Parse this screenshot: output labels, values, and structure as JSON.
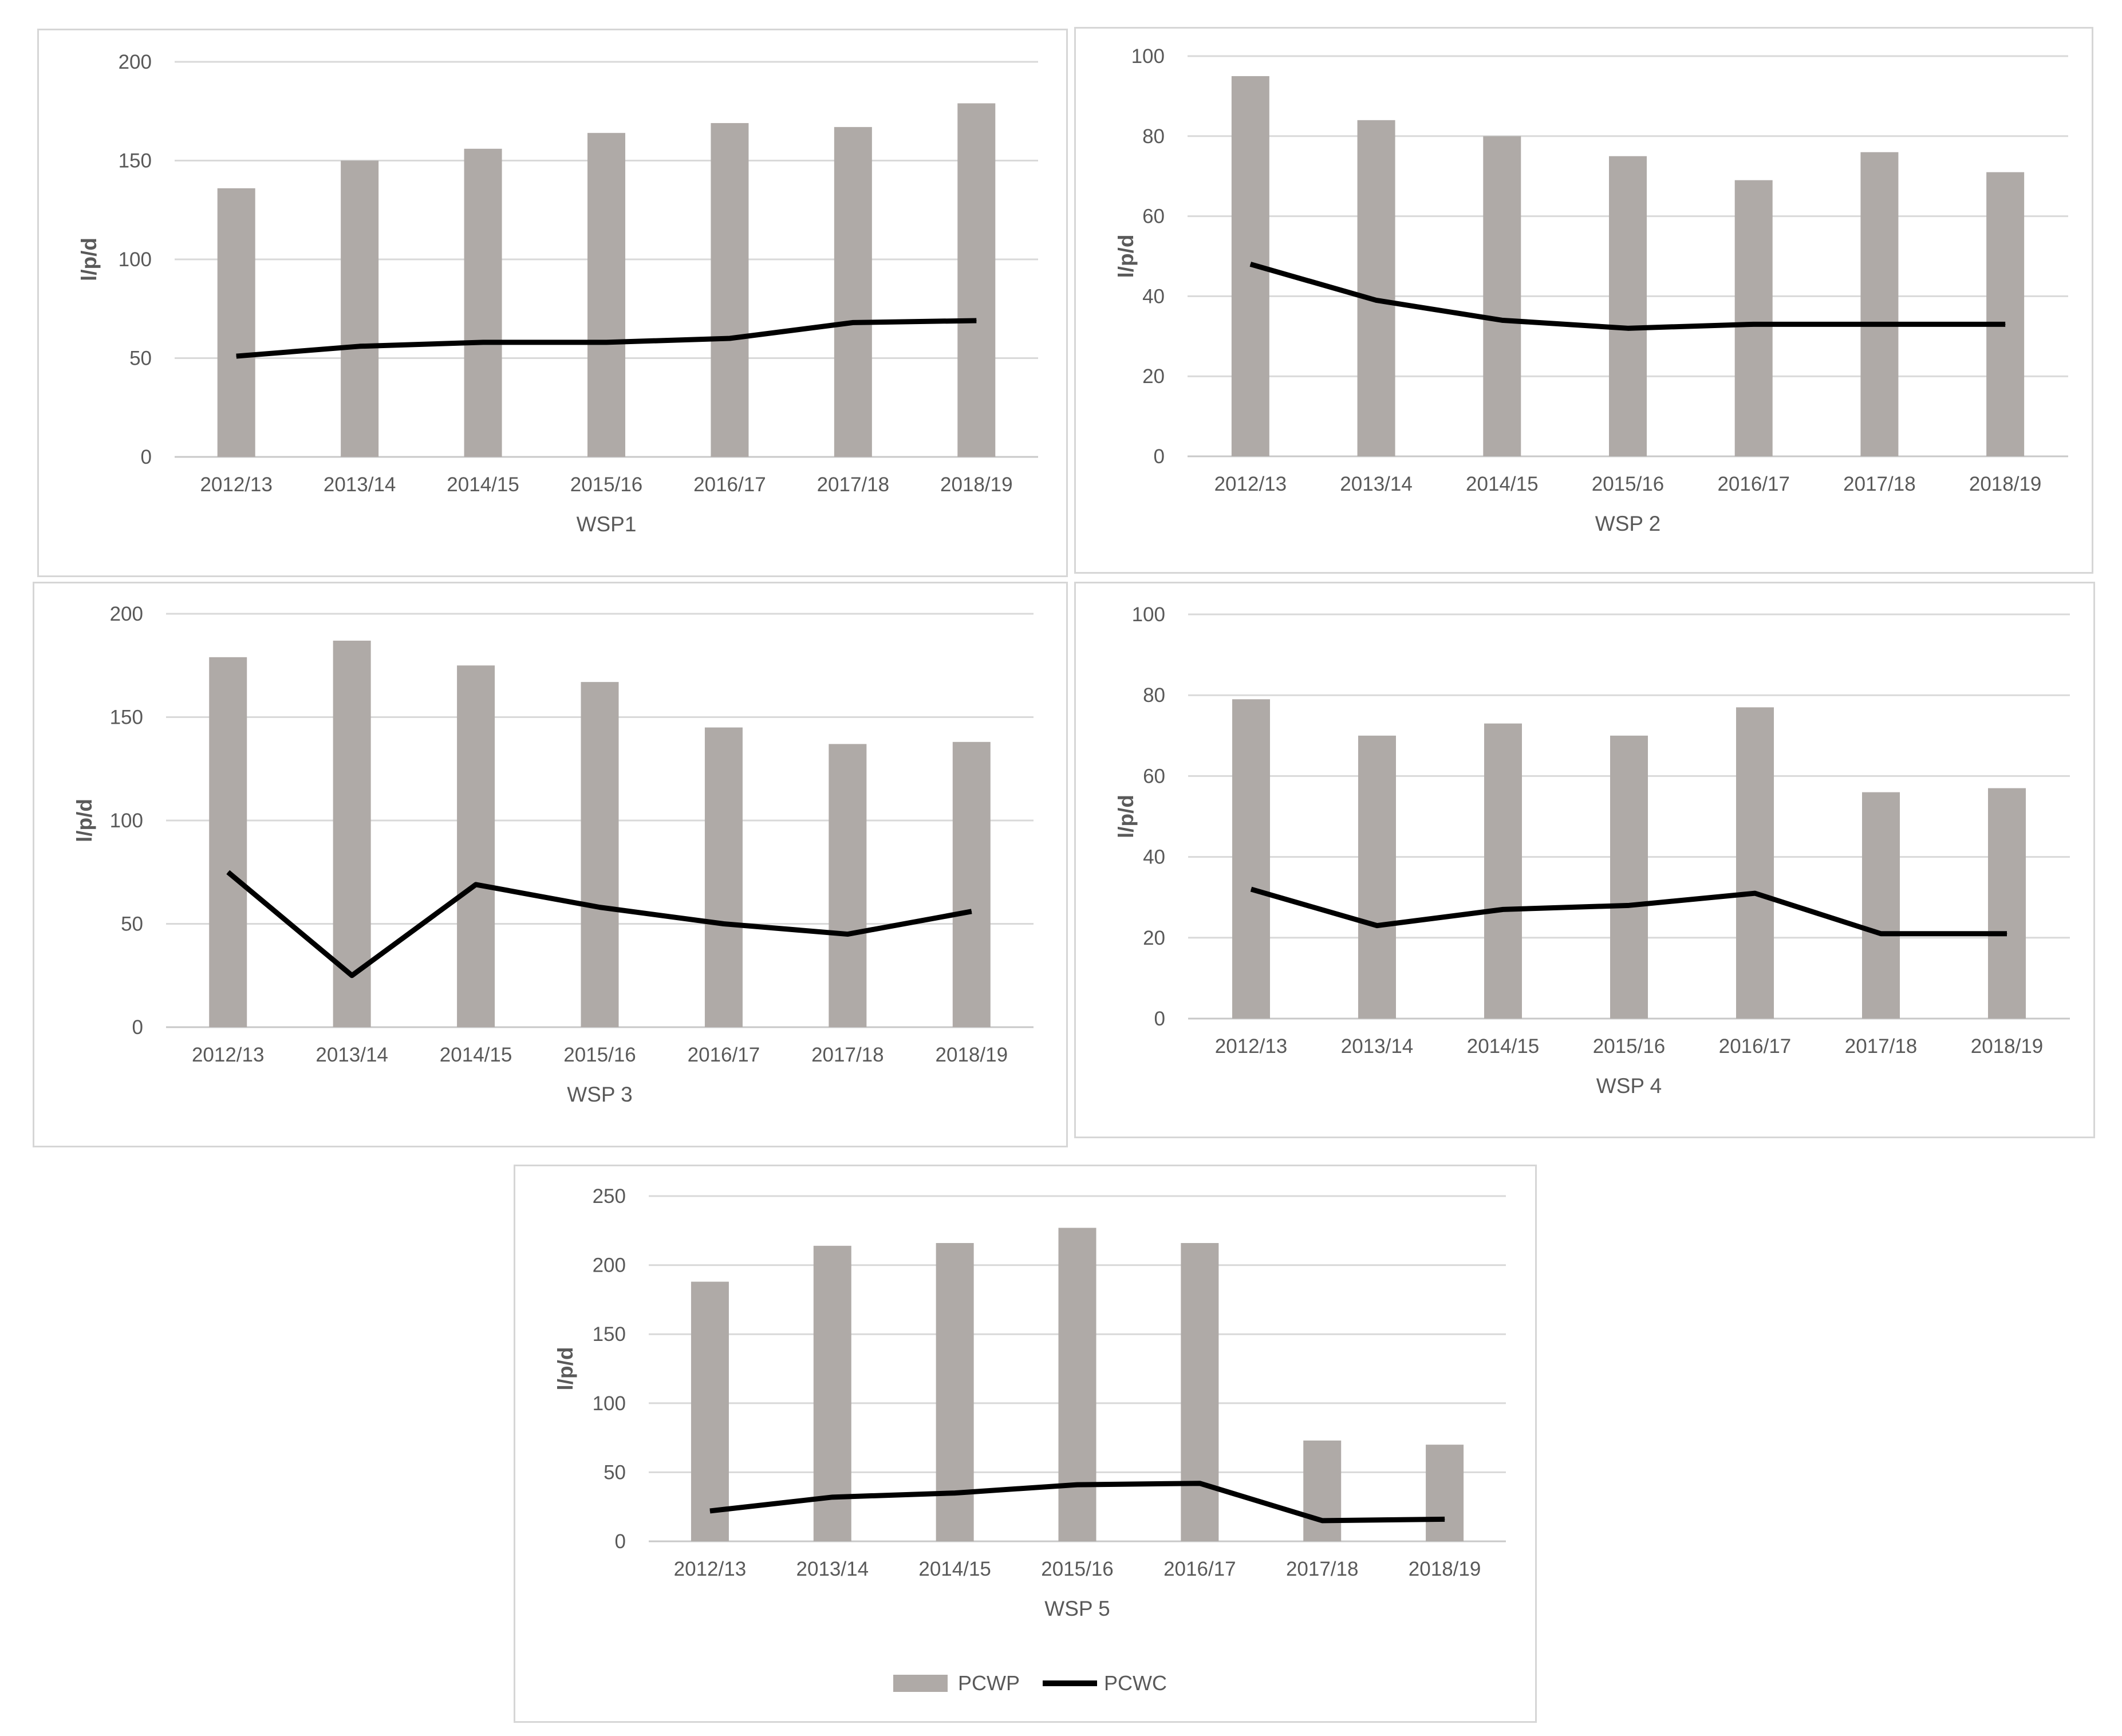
{
  "colors": {
    "bar": "#afaaa7",
    "line": "#000000",
    "grid": "#d9d9d9",
    "text": "#595959",
    "border": "#d6d6d6"
  },
  "legend": {
    "bar_label": "PCWP",
    "line_label": "PCWC"
  },
  "chart_data": [
    {
      "type": "bar",
      "title": "WSP1",
      "xlabel": "WSP1",
      "ylabel": "l/p/d",
      "ylim": [
        0,
        200
      ],
      "yticks": [
        "0",
        "50",
        "100",
        "150",
        "200"
      ],
      "categories": [
        "2012/13",
        "2013/14",
        "2014/15",
        "2015/16",
        "2016/17",
        "2017/18",
        "2018/19"
      ],
      "series": [
        {
          "name": "PCWP",
          "type": "bar",
          "values": [
            136,
            150,
            156,
            164,
            169,
            167,
            179
          ]
        },
        {
          "name": "PCWC",
          "type": "line",
          "values": [
            51,
            56,
            58,
            58,
            60,
            68,
            69
          ]
        }
      ]
    },
    {
      "type": "bar",
      "title": "WSP 2",
      "xlabel": "WSP 2",
      "ylabel": "l/p/d",
      "ylim": [
        0,
        100
      ],
      "yticks": [
        "0",
        "20",
        "40",
        "60",
        "80",
        "100"
      ],
      "categories": [
        "2012/13",
        "2013/14",
        "2014/15",
        "2015/16",
        "2016/17",
        "2017/18",
        "2018/19"
      ],
      "series": [
        {
          "name": "PCWP",
          "type": "bar",
          "values": [
            95,
            84,
            80,
            75,
            69,
            76,
            71
          ]
        },
        {
          "name": "PCWC",
          "type": "line",
          "values": [
            48,
            39,
            34,
            32,
            33,
            33,
            33
          ]
        }
      ]
    },
    {
      "type": "bar",
      "title": "WSP 3",
      "xlabel": "WSP 3",
      "ylabel": "l/p/d",
      "ylim": [
        0,
        200
      ],
      "yticks": [
        "0",
        "50",
        "100",
        "150",
        "200"
      ],
      "categories": [
        "2012/13",
        "2013/14",
        "2014/15",
        "2015/16",
        "2016/17",
        "2017/18",
        "2018/19"
      ],
      "series": [
        {
          "name": "PCWP",
          "type": "bar",
          "values": [
            179,
            187,
            175,
            167,
            145,
            137,
            138
          ]
        },
        {
          "name": "PCWC",
          "type": "line",
          "values": [
            75,
            25,
            69,
            58,
            50,
            45,
            56
          ]
        }
      ]
    },
    {
      "type": "bar",
      "title": "WSP 4",
      "xlabel": "WSP 4",
      "ylabel": "l/p/d",
      "ylim": [
        0,
        100
      ],
      "yticks": [
        "0",
        "20",
        "40",
        "60",
        "80",
        "100"
      ],
      "categories": [
        "2012/13",
        "2013/14",
        "2014/15",
        "2015/16",
        "2016/17",
        "2017/18",
        "2018/19"
      ],
      "series": [
        {
          "name": "PCWP",
          "type": "bar",
          "values": [
            79,
            70,
            73,
            70,
            77,
            56,
            57
          ]
        },
        {
          "name": "PCWC",
          "type": "line",
          "values": [
            32,
            23,
            27,
            28,
            31,
            21,
            21
          ]
        }
      ]
    },
    {
      "type": "bar",
      "title": "WSP 5",
      "xlabel": "WSP 5",
      "ylabel": "l/p/d",
      "ylim": [
        0,
        250
      ],
      "yticks": [
        "0",
        "50",
        "100",
        "150",
        "200",
        "250"
      ],
      "categories": [
        "2012/13",
        "2013/14",
        "2014/15",
        "2015/16",
        "2016/17",
        "2017/18",
        "2018/19"
      ],
      "series": [
        {
          "name": "PCWP",
          "type": "bar",
          "values": [
            188,
            214,
            216,
            227,
            216,
            73,
            70
          ]
        },
        {
          "name": "PCWC",
          "type": "line",
          "values": [
            22,
            32,
            35,
            41,
            42,
            15,
            16
          ]
        }
      ]
    }
  ]
}
